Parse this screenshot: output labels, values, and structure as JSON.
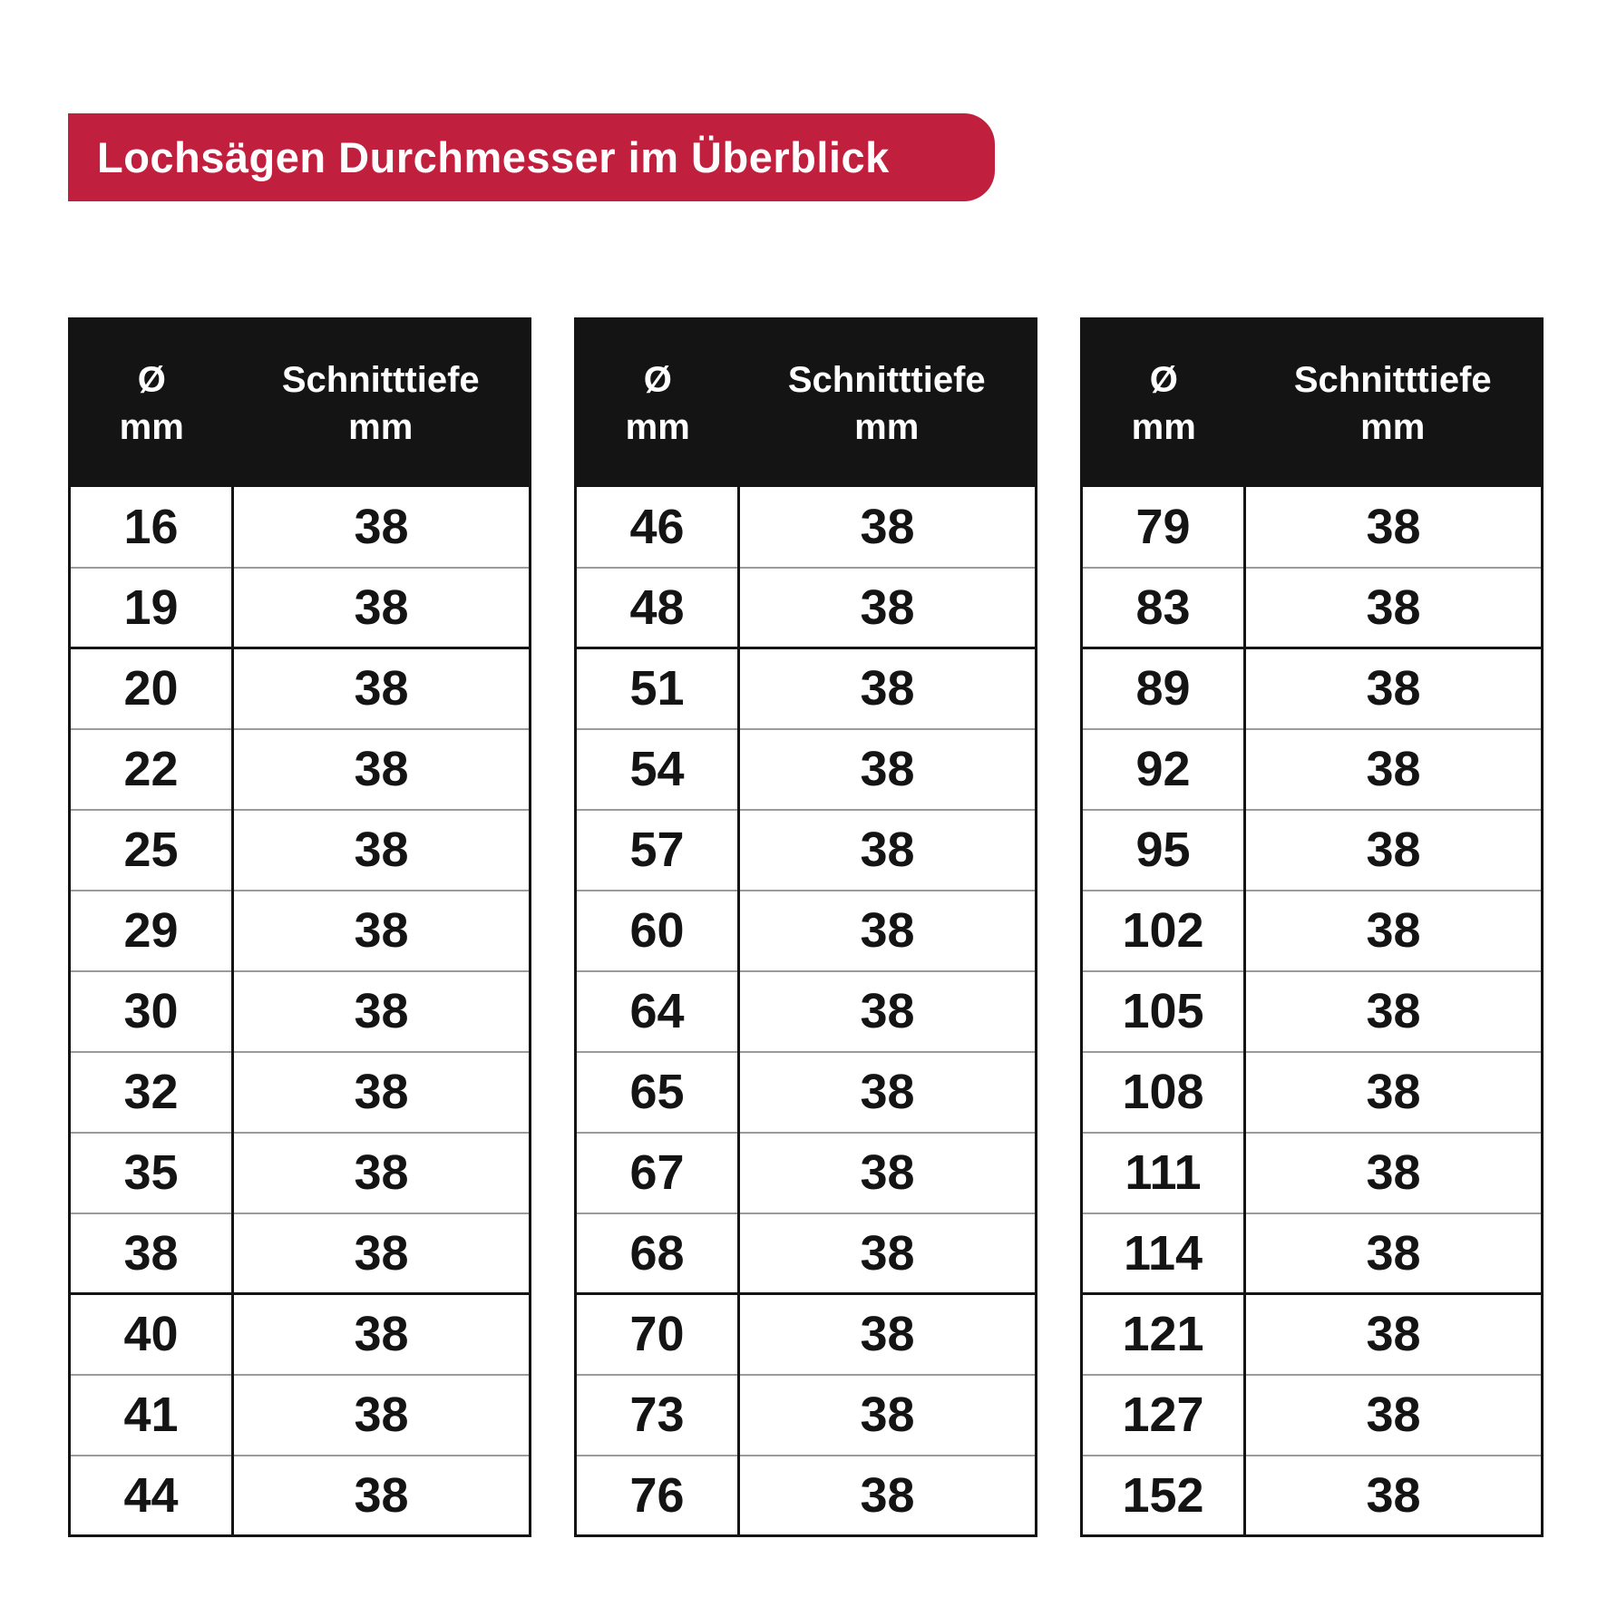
{
  "banner": {
    "title": "Lochsägen Durchmesser im Überblick"
  },
  "colors": {
    "banner_red": "#C0203E",
    "header_black": "#141414",
    "grid_gray": "#9B9B9B",
    "text_white": "#FFFFFF",
    "text_black": "#141414",
    "background": "#FFFFFF"
  },
  "table_header": {
    "col1_line1": "Ø",
    "col1_line2": "mm",
    "col2_line1": "Schnitttiefe",
    "col2_line2": "mm"
  },
  "chart_data": {
    "type": "table",
    "title": "Lochsägen Durchmesser im Überblick",
    "columns": [
      "Ø mm",
      "Schnitttiefe mm"
    ],
    "tables": [
      {
        "rows": [
          [
            16,
            38
          ],
          [
            19,
            38
          ],
          [
            20,
            38
          ],
          [
            22,
            38
          ],
          [
            25,
            38
          ],
          [
            29,
            38
          ],
          [
            30,
            38
          ],
          [
            32,
            38
          ],
          [
            35,
            38
          ],
          [
            38,
            38
          ],
          [
            40,
            38
          ],
          [
            41,
            38
          ],
          [
            44,
            38
          ]
        ]
      },
      {
        "rows": [
          [
            46,
            38
          ],
          [
            48,
            38
          ],
          [
            51,
            38
          ],
          [
            54,
            38
          ],
          [
            57,
            38
          ],
          [
            60,
            38
          ],
          [
            64,
            38
          ],
          [
            65,
            38
          ],
          [
            67,
            38
          ],
          [
            68,
            38
          ],
          [
            70,
            38
          ],
          [
            73,
            38
          ],
          [
            76,
            38
          ]
        ]
      },
      {
        "rows": [
          [
            79,
            38
          ],
          [
            83,
            38
          ],
          [
            89,
            38
          ],
          [
            92,
            38
          ],
          [
            95,
            38
          ],
          [
            102,
            38
          ],
          [
            105,
            38
          ],
          [
            108,
            38
          ],
          [
            111,
            38
          ],
          [
            114,
            38
          ],
          [
            121,
            38
          ],
          [
            127,
            38
          ],
          [
            152,
            38
          ]
        ]
      }
    ]
  }
}
